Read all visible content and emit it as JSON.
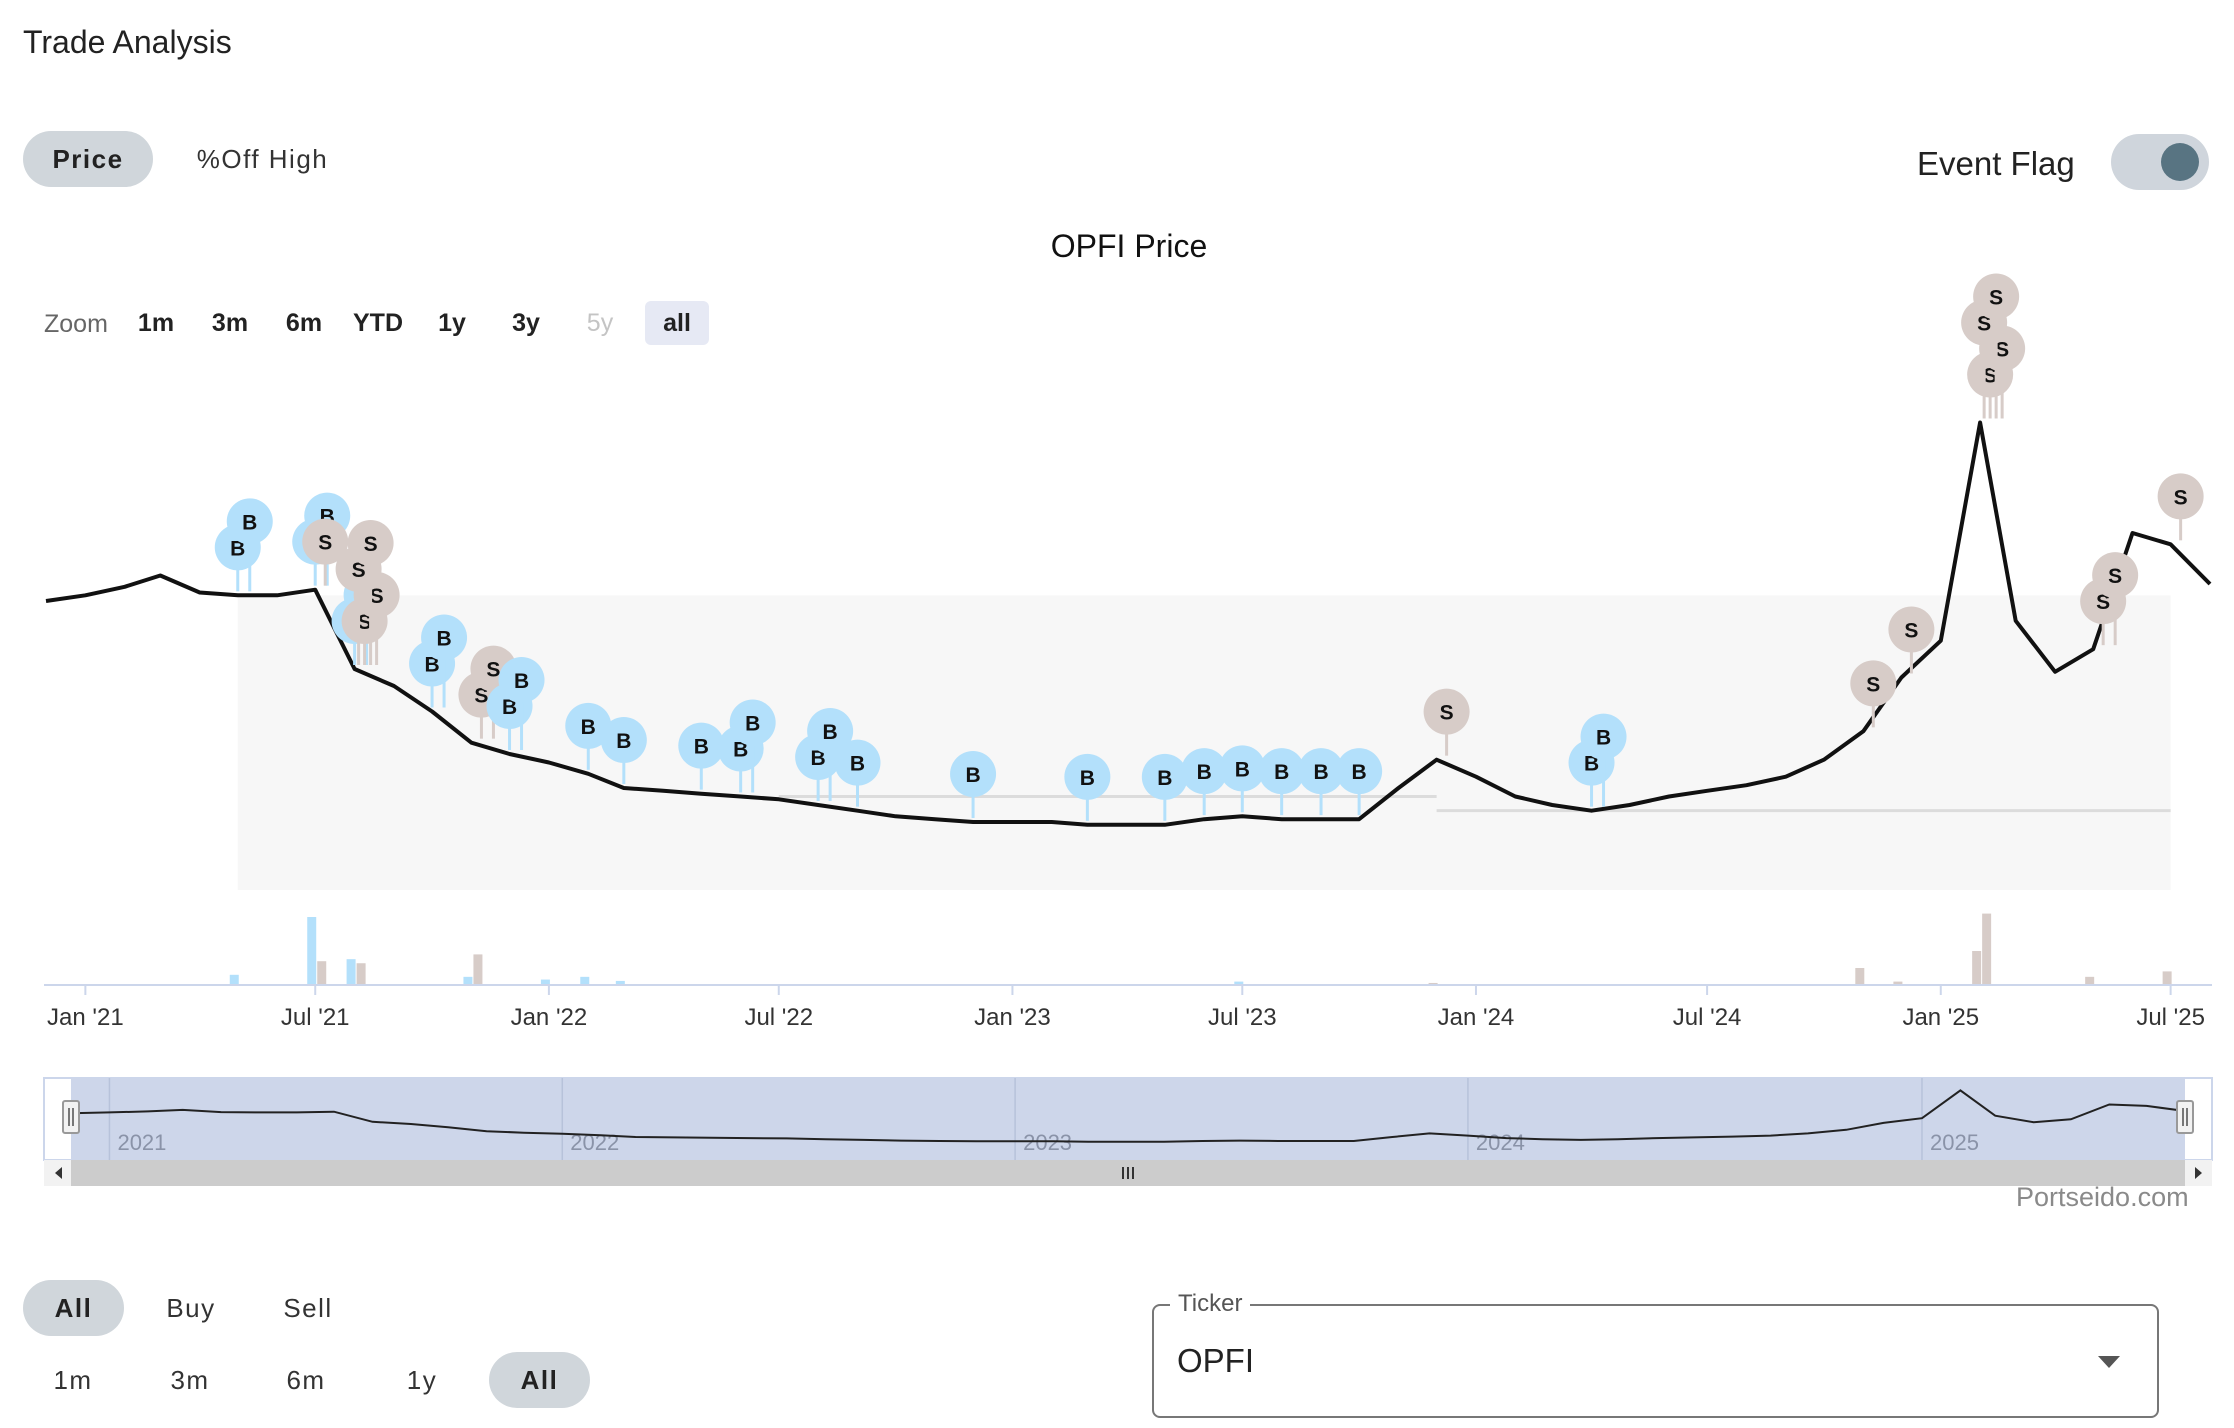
{
  "app": {
    "title": "Trade Analysis"
  },
  "view_tabs": [
    {
      "label": "Price",
      "active": true
    },
    {
      "label": "%Off High",
      "active": false
    }
  ],
  "event_flag": {
    "label": "Event Flag",
    "on": true
  },
  "chart": {
    "title": "OPFI Price",
    "zoom_label": "Zoom",
    "zoom_buttons": [
      {
        "label": "1m",
        "state": "normal"
      },
      {
        "label": "3m",
        "state": "normal"
      },
      {
        "label": "6m",
        "state": "normal"
      },
      {
        "label": "YTD",
        "state": "normal"
      },
      {
        "label": "1y",
        "state": "normal"
      },
      {
        "label": "3y",
        "state": "normal"
      },
      {
        "label": "5y",
        "state": "disabled"
      },
      {
        "label": "all",
        "state": "selected"
      }
    ],
    "watermark": "Portseido.com",
    "colors": {
      "buy": "#b3e0fb",
      "sell": "#d7ccc8",
      "line": "#111111",
      "navigator_mask": "#cdd6ea"
    }
  },
  "chart_data": {
    "type": "line",
    "title": "OPFI Price",
    "x_tick_labels": [
      "Jan '21",
      "Jul '21",
      "Jan '22",
      "Jul '22",
      "Jan '23",
      "Jul '23",
      "Jan '24",
      "Jul '24",
      "Jan '25",
      "Jul '25"
    ],
    "navigator_labels": [
      "2021",
      "2022",
      "2023",
      "2024",
      "2025"
    ],
    "series": [
      {
        "name": "OPFI",
        "x": [
          "2020-12",
          "2021-01",
          "2021-02",
          "2021-03",
          "2021-04",
          "2021-05",
          "2021-06",
          "2021-07",
          "2021-08",
          "2021-09",
          "2021-10",
          "2021-11",
          "2021-12",
          "2022-01",
          "2022-02",
          "2022-03",
          "2022-04",
          "2022-05",
          "2022-06",
          "2022-07",
          "2022-08",
          "2022-09",
          "2022-10",
          "2022-11",
          "2022-12",
          "2023-01",
          "2023-02",
          "2023-03",
          "2023-04",
          "2023-05",
          "2023-06",
          "2023-07",
          "2023-08",
          "2023-09",
          "2023-10",
          "2023-11",
          "2023-12",
          "2024-01",
          "2024-02",
          "2024-03",
          "2024-04",
          "2024-05",
          "2024-06",
          "2024-07",
          "2024-08",
          "2024-09",
          "2024-10",
          "2024-11",
          "2024-12",
          "2025-01",
          "2025-02",
          "2025-03",
          "2025-04",
          "2025-05",
          "2025-06",
          "2025-07",
          "2025-08"
        ],
        "values": [
          10.2,
          10.4,
          10.7,
          11.1,
          10.5,
          10.4,
          10.4,
          10.6,
          7.8,
          7.2,
          6.3,
          5.2,
          4.8,
          4.5,
          4.1,
          3.6,
          3.5,
          3.4,
          3.3,
          3.2,
          3.0,
          2.8,
          2.6,
          2.5,
          2.4,
          2.4,
          2.4,
          2.3,
          2.3,
          2.3,
          2.5,
          2.6,
          2.5,
          2.5,
          2.5,
          3.6,
          4.6,
          4.0,
          3.3,
          3.0,
          2.8,
          3.0,
          3.3,
          3.5,
          3.7,
          4.0,
          4.6,
          5.6,
          7.5,
          8.8,
          16.5,
          9.5,
          7.7,
          8.5,
          12.6,
          12.2,
          10.8
        ]
      }
    ],
    "flags": [
      {
        "date": "2021-05",
        "type": "B"
      },
      {
        "date": "2021-05",
        "type": "B"
      },
      {
        "date": "2021-07",
        "type": "B"
      },
      {
        "date": "2021-07",
        "type": "B"
      },
      {
        "date": "2021-07",
        "type": "S"
      },
      {
        "date": "2021-08",
        "type": "B"
      },
      {
        "date": "2021-08",
        "type": "B"
      },
      {
        "date": "2021-08",
        "type": "S"
      },
      {
        "date": "2021-08",
        "type": "S"
      },
      {
        "date": "2021-08",
        "type": "S"
      },
      {
        "date": "2021-08",
        "type": "S"
      },
      {
        "date": "2021-10",
        "type": "B"
      },
      {
        "date": "2021-10",
        "type": "B"
      },
      {
        "date": "2021-11",
        "type": "S"
      },
      {
        "date": "2021-11",
        "type": "S"
      },
      {
        "date": "2021-12",
        "type": "B"
      },
      {
        "date": "2021-12",
        "type": "B"
      },
      {
        "date": "2022-02",
        "type": "B"
      },
      {
        "date": "2022-03",
        "type": "B"
      },
      {
        "date": "2022-05",
        "type": "B"
      },
      {
        "date": "2022-06",
        "type": "B"
      },
      {
        "date": "2022-06",
        "type": "B"
      },
      {
        "date": "2022-08",
        "type": "B"
      },
      {
        "date": "2022-08",
        "type": "B"
      },
      {
        "date": "2022-09",
        "type": "B"
      },
      {
        "date": "2022-12",
        "type": "B"
      },
      {
        "date": "2023-03",
        "type": "B"
      },
      {
        "date": "2023-05",
        "type": "B"
      },
      {
        "date": "2023-06",
        "type": "B"
      },
      {
        "date": "2023-07",
        "type": "B"
      },
      {
        "date": "2023-08",
        "type": "B"
      },
      {
        "date": "2023-09",
        "type": "B"
      },
      {
        "date": "2023-10",
        "type": "B"
      },
      {
        "date": "2023-12",
        "type": "S"
      },
      {
        "date": "2024-04",
        "type": "B"
      },
      {
        "date": "2024-04",
        "type": "B"
      },
      {
        "date": "2024-11",
        "type": "S"
      },
      {
        "date": "2024-12",
        "type": "S"
      },
      {
        "date": "2025-02",
        "type": "S"
      },
      {
        "date": "2025-02",
        "type": "S"
      },
      {
        "date": "2025-02",
        "type": "S"
      },
      {
        "date": "2025-02",
        "type": "S"
      },
      {
        "date": "2025-05",
        "type": "S"
      },
      {
        "date": "2025-05",
        "type": "S"
      },
      {
        "date": "2025-07",
        "type": "S"
      }
    ],
    "volume": [
      {
        "date": "2021-05",
        "type": "B",
        "value": 0.15
      },
      {
        "date": "2021-07",
        "type": "B",
        "value": 1.0
      },
      {
        "date": "2021-07",
        "type": "S",
        "value": 0.35
      },
      {
        "date": "2021-08",
        "type": "B",
        "value": 0.38
      },
      {
        "date": "2021-08",
        "type": "S",
        "value": 0.32
      },
      {
        "date": "2021-11",
        "type": "B",
        "value": 0.12
      },
      {
        "date": "2021-11",
        "type": "S",
        "value": 0.45
      },
      {
        "date": "2022-01",
        "type": "B",
        "value": 0.08
      },
      {
        "date": "2022-02",
        "type": "B",
        "value": 0.12
      },
      {
        "date": "2022-03",
        "type": "B",
        "value": 0.06
      },
      {
        "date": "2023-07",
        "type": "B",
        "value": 0.05
      },
      {
        "date": "2023-12",
        "type": "S",
        "value": 0.03
      },
      {
        "date": "2024-11",
        "type": "S",
        "value": 0.25
      },
      {
        "date": "2024-12",
        "type": "S",
        "value": 0.05
      },
      {
        "date": "2025-02",
        "type": "S",
        "value": 0.5
      },
      {
        "date": "2025-02",
        "type": "S",
        "value": 1.05
      },
      {
        "date": "2025-05",
        "type": "S",
        "value": 0.12
      },
      {
        "date": "2025-07",
        "type": "S",
        "value": 0.2
      }
    ],
    "legend": "none"
  },
  "filters": {
    "type_buttons": [
      {
        "label": "All",
        "active": true
      },
      {
        "label": "Buy",
        "active": false
      },
      {
        "label": "Sell",
        "active": false
      }
    ],
    "period_buttons": [
      {
        "label": "1m",
        "active": false
      },
      {
        "label": "3m",
        "active": false
      },
      {
        "label": "6m",
        "active": false
      },
      {
        "label": "1y",
        "active": false
      },
      {
        "label": "All",
        "active": true
      }
    ]
  },
  "ticker": {
    "label": "Ticker",
    "value": "OPFI"
  }
}
